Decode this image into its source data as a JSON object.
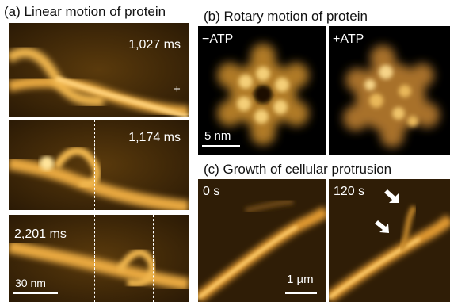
{
  "section_a": {
    "title": "(a) Linear motion of protein",
    "frames": [
      {
        "time": "1,027 ms",
        "marker": "+"
      },
      {
        "time": "1,174 ms"
      },
      {
        "time": "2,201 ms"
      }
    ],
    "scale": "30 nm"
  },
  "section_b": {
    "title": "(b) Rotary motion of protein",
    "left_label": "−ATP",
    "right_label": "+ATP",
    "scale": "5 nm"
  },
  "section_c": {
    "title": "(c) Growth of cellular protrusion",
    "left_label": "0 s",
    "right_label": "120 s",
    "scale": "1 µm"
  },
  "colors": {
    "background": "#000000",
    "afm_dark": "#2a1a05",
    "afm_bright": "#f5c25a",
    "text": "#ffffff"
  }
}
